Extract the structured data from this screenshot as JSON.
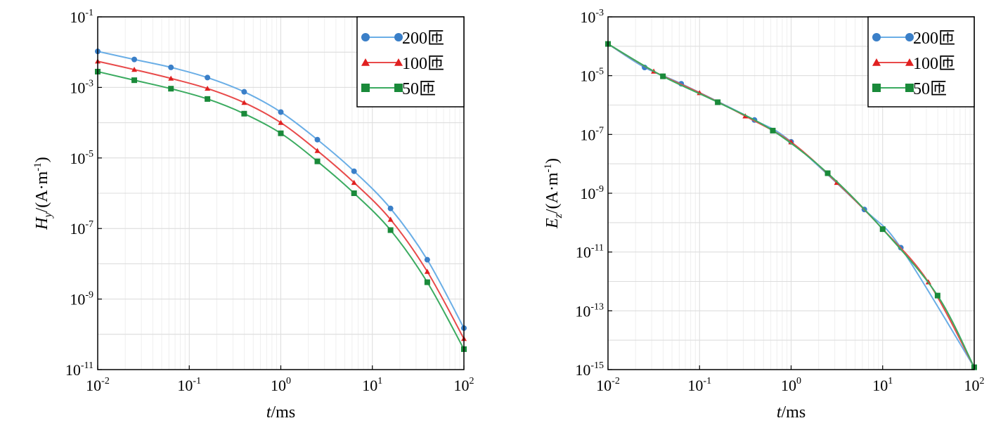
{
  "chart_data": [
    {
      "type": "line",
      "x_scale": "log",
      "y_scale": "log",
      "xlim": [
        0.01,
        100
      ],
      "ylim": [
        1e-11,
        0.1
      ],
      "grid": true,
      "legend_position": "top-right",
      "xlabel": {
        "italic": "t",
        "rest": "/ms"
      },
      "ylabel": {
        "italic": "H",
        "sub": "y",
        "rest": "/(A·m",
        "sup": "-1",
        "close": ")"
      },
      "x_ticks": [
        {
          "base": "10",
          "exp": "-2"
        },
        {
          "base": "10",
          "exp": "-1"
        },
        {
          "base": "10",
          "exp": "0"
        },
        {
          "base": "10",
          "exp": "1"
        },
        {
          "base": "10",
          "exp": "2"
        }
      ],
      "y_ticks": [
        {
          "base": "10",
          "exp": "-11"
        },
        {
          "base": "10",
          "exp": "-9"
        },
        {
          "base": "10",
          "exp": "-7"
        },
        {
          "base": "10",
          "exp": "-5"
        },
        {
          "base": "10",
          "exp": "-3"
        },
        {
          "base": "10",
          "exp": "-1"
        }
      ],
      "series": [
        {
          "name": "200匝",
          "color": "#6aaee6",
          "marker_color": "#3a7fc8",
          "marker": "circle",
          "x": [
            0.01,
            0.0251,
            0.0631,
            0.158,
            0.398,
            1.0,
            2.51,
            6.31,
            15.8,
            39.8,
            100
          ],
          "y": [
            0.0105,
            0.0062,
            0.0037,
            0.0019,
            0.00075,
            0.0002,
            3.3e-05,
            4.2e-06,
            3.7e-07,
            1.3e-08,
            1.5e-10
          ]
        },
        {
          "name": "100匝",
          "color": "#e84a4a",
          "marker_color": "#e02020",
          "marker": "triangle",
          "x": [
            0.01,
            0.0251,
            0.0631,
            0.158,
            0.398,
            1.0,
            2.51,
            6.31,
            15.8,
            39.8,
            100
          ],
          "y": [
            0.0055,
            0.0032,
            0.0018,
            0.00093,
            0.00037,
            0.0001,
            1.6e-05,
            2e-06,
            1.8e-07,
            6e-09,
            7.5e-11
          ]
        },
        {
          "name": "50匝",
          "color": "#3bab60",
          "marker_color": "#1a8a3a",
          "marker": "square",
          "x": [
            0.01,
            0.0251,
            0.0631,
            0.158,
            0.398,
            1.0,
            2.51,
            6.31,
            15.8,
            39.8,
            100
          ],
          "y": [
            0.0028,
            0.0016,
            0.00092,
            0.00047,
            0.00018,
            5e-05,
            8e-06,
            1e-06,
            9e-08,
            3e-09,
            3.8e-11
          ]
        }
      ]
    },
    {
      "type": "line",
      "x_scale": "log",
      "y_scale": "log",
      "xlim": [
        0.01,
        100
      ],
      "ylim": [
        1e-15,
        0.001
      ],
      "grid": true,
      "legend_position": "top-right",
      "xlabel": {
        "italic": "t",
        "rest": "/ms"
      },
      "ylabel": {
        "italic": "E",
        "sub": "z",
        "rest": "/(A·m",
        "sup": "-1",
        "close": ")"
      },
      "x_ticks": [
        {
          "base": "10",
          "exp": "-2"
        },
        {
          "base": "10",
          "exp": "-1"
        },
        {
          "base": "10",
          "exp": "0"
        },
        {
          "base": "10",
          "exp": "1"
        },
        {
          "base": "10",
          "exp": "2"
        }
      ],
      "y_ticks": [
        {
          "base": "10",
          "exp": "-15"
        },
        {
          "base": "10",
          "exp": "-13"
        },
        {
          "base": "10",
          "exp": "-11"
        },
        {
          "base": "10",
          "exp": "-9"
        },
        {
          "base": "10",
          "exp": "-7"
        },
        {
          "base": "10",
          "exp": "-5"
        },
        {
          "base": "10",
          "exp": "-3"
        }
      ],
      "series": [
        {
          "name": "200匝",
          "color": "#6aaee6",
          "marker_color": "#3a7fc8",
          "marker": "circle",
          "x": [
            0.01,
            0.0251,
            0.0631,
            0.398,
            1.0,
            6.31,
            15.8,
            100
          ],
          "y": [
            0.00012,
            1.9e-05,
            5.3e-06,
            3.1e-07,
            5.6e-08,
            2.8e-10,
            1.4e-11,
            1.2e-15
          ]
        },
        {
          "name": "100匝",
          "color": "#e84a4a",
          "marker_color": "#e02020",
          "marker": "triangle",
          "x": [
            0.01,
            0.0316,
            0.1,
            0.316,
            1.0,
            3.16,
            10,
            31.6,
            100
          ],
          "y": [
            0.00012,
            1.4e-05,
            2.6e-06,
            4.2e-07,
            5.5e-08,
            2.3e-09,
            6.1e-11,
            9.5e-13,
            1.2e-15
          ]
        },
        {
          "name": "50匝",
          "color": "#3bab60",
          "marker_color": "#1a8a3a",
          "marker": "square",
          "x": [
            0.01,
            0.0398,
            0.158,
            0.631,
            2.51,
            10,
            39.8,
            100
          ],
          "y": [
            0.00012,
            9.5e-06,
            1.25e-06,
            1.35e-07,
            4.8e-09,
            6e-11,
            3.3e-13,
            1.2e-15
          ]
        }
      ]
    }
  ]
}
